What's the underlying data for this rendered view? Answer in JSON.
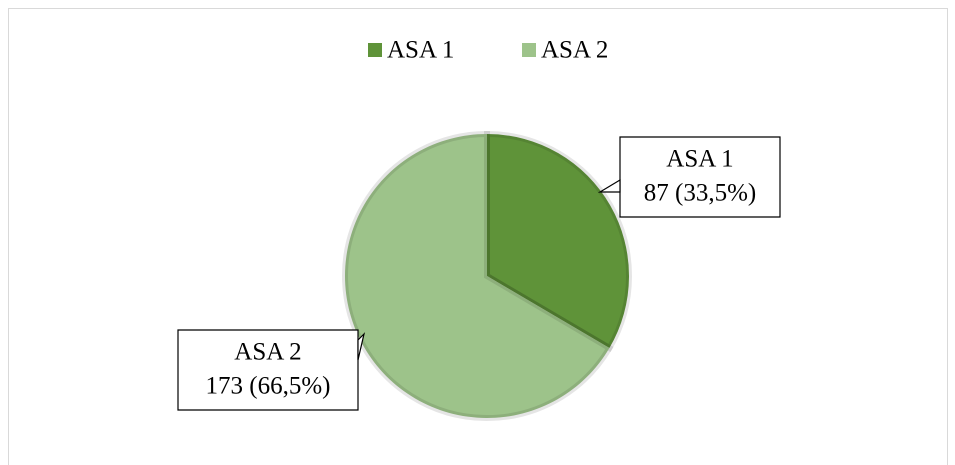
{
  "chart_data": {
    "type": "pie",
    "categories": [
      "ASA 1",
      "ASA 2"
    ],
    "values": [
      87,
      173
    ],
    "value_labels": [
      "87 (33,5%)",
      "173 (66,5%)"
    ],
    "colors": [
      "#5f9339",
      "#9dc38a"
    ],
    "legend": "top"
  }
}
